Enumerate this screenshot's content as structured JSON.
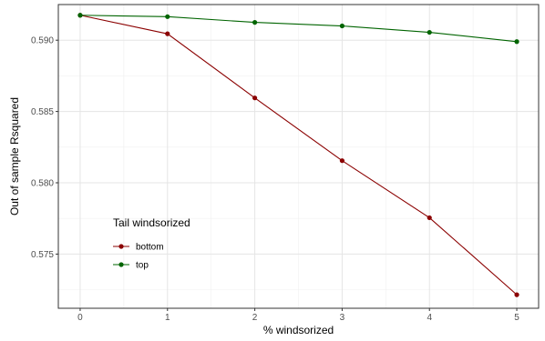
{
  "chart_data": {
    "type": "line",
    "x": [
      0,
      1,
      2,
      3,
      4,
      5
    ],
    "series": [
      {
        "name": "bottom",
        "color": "#8b0000",
        "values": [
          0.59175,
          0.59045,
          0.58595,
          0.58155,
          0.57755,
          0.57215
        ]
      },
      {
        "name": "top",
        "color": "#006400",
        "values": [
          0.59175,
          0.59165,
          0.59125,
          0.591,
          0.59055,
          0.5899
        ]
      }
    ],
    "xlabel": "% windsorized",
    "ylabel": "Out of sample Rsquared",
    "xlim": [
      -0.25,
      5.25
    ],
    "ylim": [
      0.5712,
      0.5925
    ],
    "x_ticks": [
      0,
      1,
      2,
      3,
      4,
      5
    ],
    "y_ticks": [
      0.575,
      0.58,
      0.585,
      0.59
    ],
    "y_tick_labels": [
      "0.575",
      "0.580",
      "0.585",
      "0.590"
    ],
    "legend": {
      "title": "Tail windsorized",
      "placement": "inside-bottom-left"
    },
    "grid": true
  }
}
